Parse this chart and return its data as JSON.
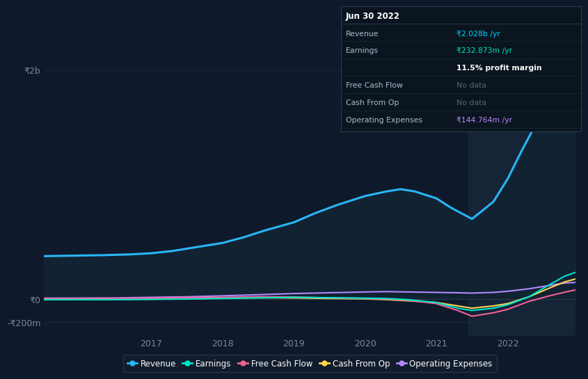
{
  "background_color": "#0e1a2b",
  "chart_bg_color": "#0e1a2b",
  "title": "Jun 30 2022",
  "info_box_rows": [
    {
      "label": "Revenue",
      "value": "₹2.028b /yr",
      "value_color": "#00d4ff",
      "label_color": "#aabbcc"
    },
    {
      "label": "Earnings",
      "value": "₹232.873m /yr",
      "value_color": "#00e5bb",
      "label_color": "#aabbcc"
    },
    {
      "label": "",
      "value": "11.5% profit margin",
      "value_color": "#ffffff",
      "label_color": "#aabbcc",
      "bold_value": true
    },
    {
      "label": "Free Cash Flow",
      "value": "No data",
      "value_color": "#556677",
      "label_color": "#aabbcc"
    },
    {
      "label": "Cash From Op",
      "value": "No data",
      "value_color": "#556677",
      "label_color": "#aabbcc"
    },
    {
      "label": "Operating Expenses",
      "value": "₹144.764m /yr",
      "value_color": "#c084fc",
      "label_color": "#aabbcc"
    }
  ],
  "ytick_labels": [
    "₹2b",
    "₹0",
    "-₹200m"
  ],
  "ytick_values": [
    2000,
    0,
    -200
  ],
  "ylim": [
    -320,
    2300
  ],
  "xlim": [
    2015.5,
    2022.95
  ],
  "xticks": [
    2017,
    2018,
    2019,
    2020,
    2021,
    2022
  ],
  "highlight_x_start": 2021.45,
  "highlight_color": "#162438",
  "series": {
    "Revenue": {
      "color": "#29b6f6",
      "fill_color": "#112233",
      "x": [
        2015.5,
        2016.0,
        2016.3,
        2016.7,
        2017.0,
        2017.3,
        2017.6,
        2018.0,
        2018.3,
        2018.6,
        2019.0,
        2019.3,
        2019.6,
        2020.0,
        2020.3,
        2020.5,
        2020.7,
        2021.0,
        2021.2,
        2021.5,
        2021.8,
        2022.0,
        2022.2,
        2022.5,
        2022.8,
        2022.95
      ],
      "y": [
        375,
        380,
        383,
        390,
        400,
        420,
        450,
        490,
        540,
        600,
        670,
        750,
        820,
        900,
        940,
        960,
        940,
        880,
        800,
        700,
        850,
        1050,
        1300,
        1650,
        1980,
        2028
      ]
    },
    "Earnings": {
      "color": "#00e5cc",
      "x": [
        2015.5,
        2016.5,
        2017.0,
        2017.5,
        2018.0,
        2018.5,
        2019.0,
        2019.5,
        2020.0,
        2020.3,
        2020.6,
        2021.0,
        2021.3,
        2021.5,
        2021.8,
        2022.0,
        2022.3,
        2022.6,
        2022.8,
        2022.95
      ],
      "y": [
        -5,
        -5,
        -3,
        0,
        5,
        10,
        15,
        12,
        8,
        5,
        -5,
        -30,
        -80,
        -100,
        -80,
        -50,
        20,
        130,
        200,
        233
      ]
    },
    "Free Cash Flow": {
      "color": "#f06292",
      "x": [
        2015.5,
        2016.5,
        2017.0,
        2017.5,
        2018.0,
        2018.5,
        2019.0,
        2019.5,
        2020.0,
        2020.3,
        2020.6,
        2021.0,
        2021.3,
        2021.5,
        2021.8,
        2022.0,
        2022.3,
        2022.6,
        2022.8,
        2022.95
      ],
      "y": [
        5,
        5,
        8,
        12,
        15,
        20,
        18,
        10,
        5,
        0,
        -10,
        -40,
        -100,
        -150,
        -120,
        -90,
        -20,
        30,
        60,
        80
      ]
    },
    "Cash From Op": {
      "color": "#ffd54f",
      "x": [
        2015.5,
        2016.5,
        2017.0,
        2017.5,
        2018.0,
        2018.5,
        2019.0,
        2019.5,
        2020.0,
        2020.3,
        2020.6,
        2021.0,
        2021.3,
        2021.5,
        2021.8,
        2022.0,
        2022.3,
        2022.6,
        2022.8,
        2022.95
      ],
      "y": [
        -5,
        -3,
        0,
        3,
        8,
        12,
        10,
        5,
        2,
        -5,
        -15,
        -30,
        -60,
        -80,
        -60,
        -40,
        20,
        100,
        150,
        175
      ]
    },
    "Operating Expenses": {
      "color": "#b388ff",
      "x": [
        2015.5,
        2016.5,
        2017.0,
        2017.5,
        2018.0,
        2018.5,
        2019.0,
        2019.5,
        2020.0,
        2020.3,
        2020.6,
        2021.0,
        2021.3,
        2021.5,
        2021.8,
        2022.0,
        2022.3,
        2022.6,
        2022.8,
        2022.95
      ],
      "y": [
        8,
        10,
        15,
        20,
        28,
        38,
        48,
        55,
        62,
        65,
        62,
        58,
        55,
        52,
        58,
        68,
        90,
        120,
        140,
        145
      ]
    }
  },
  "legend": [
    {
      "label": "Revenue",
      "color": "#29b6f6"
    },
    {
      "label": "Earnings",
      "color": "#00e5cc"
    },
    {
      "label": "Free Cash Flow",
      "color": "#f06292"
    },
    {
      "label": "Cash From Op",
      "color": "#ffd54f"
    },
    {
      "label": "Operating Expenses",
      "color": "#b388ff"
    }
  ]
}
